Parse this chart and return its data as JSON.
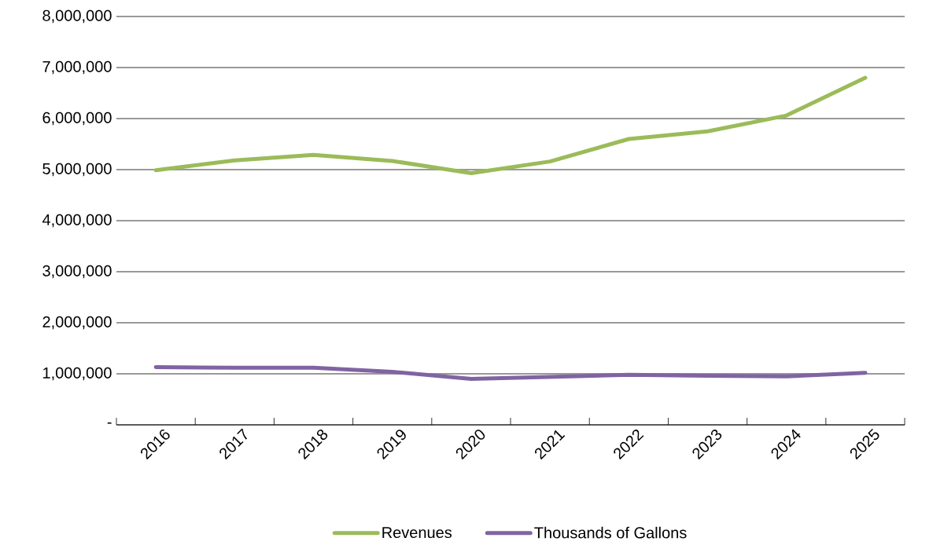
{
  "chart_data": {
    "type": "line",
    "categories": [
      "2016",
      "2017",
      "2018",
      "2019",
      "2020",
      "2021",
      "2022",
      "2023",
      "2024",
      "2025"
    ],
    "series": [
      {
        "name": "Revenues",
        "color": "#9bbb59",
        "values": [
          4990000,
          5180000,
          5290000,
          5170000,
          4930000,
          5160000,
          5600000,
          5750000,
          6060000,
          6800000
        ]
      },
      {
        "name": "Thousands of Gallons",
        "color": "#8064a2",
        "values": [
          1130000,
          1120000,
          1120000,
          1040000,
          900000,
          940000,
          980000,
          960000,
          950000,
          1020000
        ]
      }
    ],
    "ylim": [
      0,
      8000000
    ],
    "yticks": [
      {
        "value": 0,
        "label": "-"
      },
      {
        "value": 1000000,
        "label": "1,000,000"
      },
      {
        "value": 2000000,
        "label": "2,000,000"
      },
      {
        "value": 3000000,
        "label": "3,000,000"
      },
      {
        "value": 4000000,
        "label": "4,000,000"
      },
      {
        "value": 5000000,
        "label": "5,000,000"
      },
      {
        "value": 6000000,
        "label": "6,000,000"
      },
      {
        "value": 7000000,
        "label": "7,000,000"
      },
      {
        "value": 8000000,
        "label": "8,000,000"
      }
    ],
    "grid": "y",
    "legend": "bottom",
    "marker": "none",
    "line_style": "solid"
  }
}
